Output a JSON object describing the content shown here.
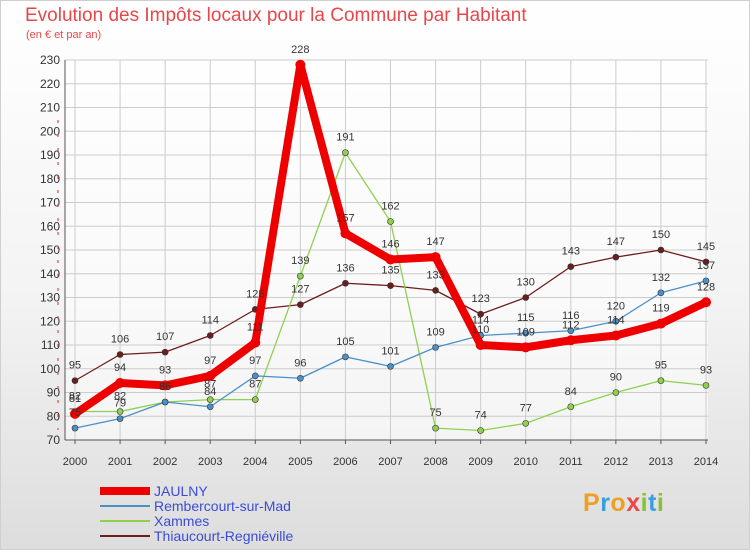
{
  "title": "Evolution des Impôts locaux pour la Commune par Habitant",
  "subtitle": "(en € et par an)",
  "logo": {
    "p": "P",
    "r": "r",
    "o": "o",
    "x": "x",
    "i": "i",
    "t": "t",
    "i2": "i",
    "colors": [
      "#f0a021",
      "#3aa0dd",
      "#f0a021",
      "#e8474a",
      "#88c036",
      "#3aa0dd",
      "#88c036"
    ]
  },
  "chart_data": {
    "type": "line",
    "title": "Evolution des Impôts locaux pour la Commune par Habitant",
    "ylabel": "(en € et par an)",
    "xlabel": "",
    "ylim": [
      70,
      230
    ],
    "yticks": [
      70,
      80,
      90,
      100,
      110,
      120,
      130,
      140,
      150,
      160,
      170,
      180,
      190,
      200,
      210,
      220,
      230
    ],
    "x": [
      2000,
      2001,
      2002,
      2003,
      2004,
      2005,
      2006,
      2007,
      2008,
      2009,
      2010,
      2011,
      2012,
      2013,
      2014
    ],
    "grid": true,
    "legend": "bottom-left",
    "series": [
      {
        "name": "Thiaucourt-Regniéville",
        "color": "#6b1e1e",
        "values": [
          95,
          106,
          107,
          114,
          125,
          127,
          136,
          135,
          133,
          123,
          130,
          143,
          147,
          150,
          145
        ]
      },
      {
        "name": "Xammes",
        "color": "#8fd14f",
        "values": [
          82,
          82,
          86,
          87,
          87,
          139,
          191,
          162,
          75,
          74,
          77,
          84,
          90,
          95,
          93
        ]
      },
      {
        "name": "Rembercourt-sur-Mad",
        "color": "#4a90c8",
        "values": [
          75,
          79,
          86,
          84,
          97,
          96,
          105,
          101,
          109,
          114,
          115,
          116,
          120,
          132,
          137
        ]
      },
      {
        "name": "JAULNY",
        "color": "#ee0000",
        "values": [
          81,
          94,
          93,
          97,
          111,
          228,
          157,
          146,
          147,
          110,
          109,
          112,
          114,
          119,
          128
        ]
      }
    ],
    "legend_order": [
      "JAULNY",
      "Rembercourt-sur-Mad",
      "Xammes",
      "Thiaucourt-Regniéville"
    ]
  }
}
